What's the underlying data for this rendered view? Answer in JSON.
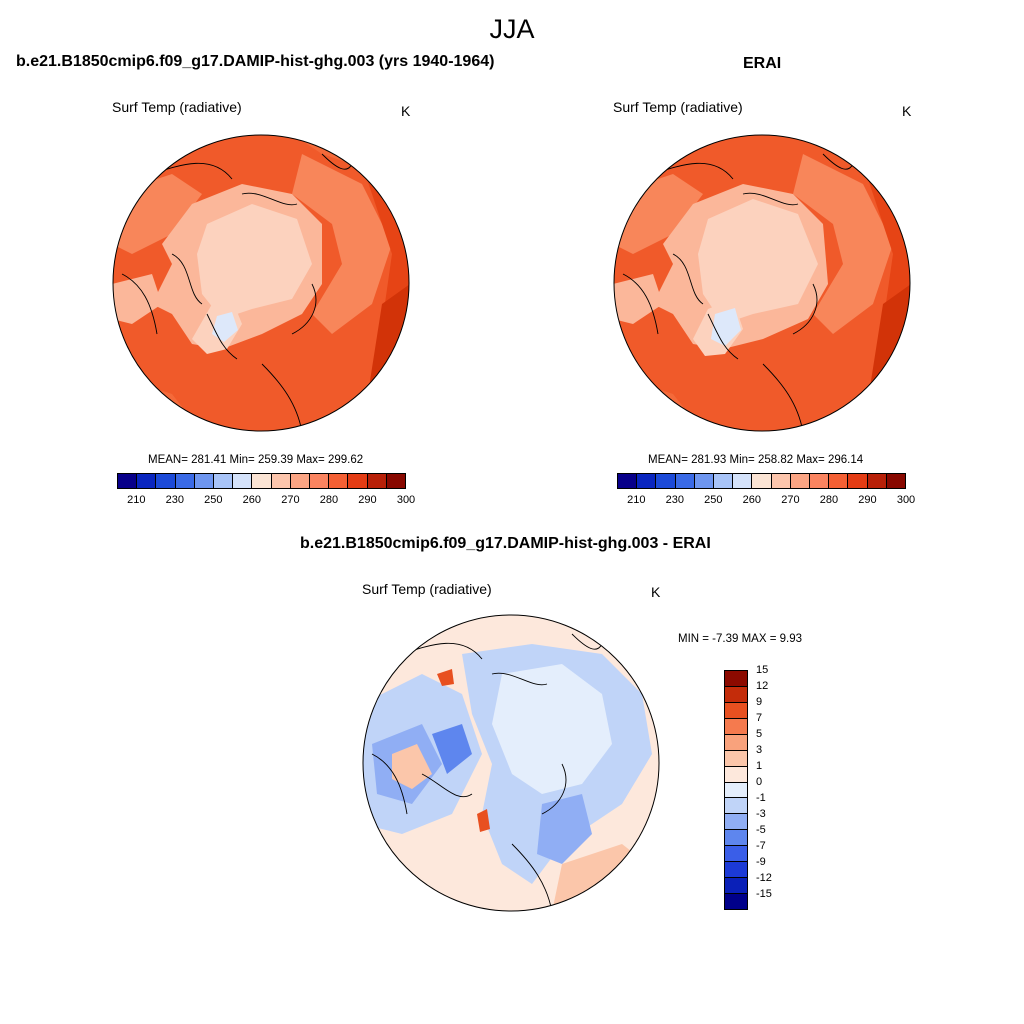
{
  "title": "JJA",
  "panels": [
    {
      "title": "b.e21.B1850cmip6.f09_g17.DAMIP-hist-ghg.003 (yrs 1940-1964)",
      "variable": "Surf Temp (radiative)",
      "units": "K",
      "stats": "MEAN= 281.41  Min= 259.39  Max= 299.62"
    },
    {
      "title": "ERAI",
      "variable": "Surf Temp (radiative)",
      "units": "K",
      "stats": "MEAN= 281.93  Min= 258.82  Max= 296.14"
    },
    {
      "title": "b.e21.B1850cmip6.f09_g17.DAMIP-hist-ghg.003 - ERAI",
      "variable": "Surf Temp (radiative)",
      "units": "K",
      "stats": "MIN =  -7.39 MAX =   9.93"
    }
  ],
  "abs_colorbar": {
    "colors": [
      "#08008a",
      "#0a26c0",
      "#1c4ad8",
      "#3a6ae6",
      "#6e96f0",
      "#a8c4f8",
      "#d4e2fa",
      "#fbe4d4",
      "#fcc5ac",
      "#fba584",
      "#fa8460",
      "#f46034",
      "#e43c14",
      "#b82008",
      "#880800"
    ],
    "tick_labels": [
      "210",
      "230",
      "250",
      "260",
      "270",
      "280",
      "290",
      "300"
    ]
  },
  "diff_colorbar": {
    "colors": [
      "#00008a",
      "#0a20b8",
      "#1c3ad6",
      "#3a5ee8",
      "#5e86ee",
      "#90aef4",
      "#c0d4f8",
      "#e4eefc",
      "#fde8dc",
      "#fbc6aa",
      "#f9a27c",
      "#f57a4e",
      "#e85020",
      "#c42c0a",
      "#8c0a00"
    ],
    "tick_labels": [
      "-15",
      "-12",
      "-9",
      "-7",
      "-5",
      "-3",
      "-1",
      "0",
      "1",
      "3",
      "5",
      "7",
      "9",
      "12",
      "15"
    ]
  }
}
